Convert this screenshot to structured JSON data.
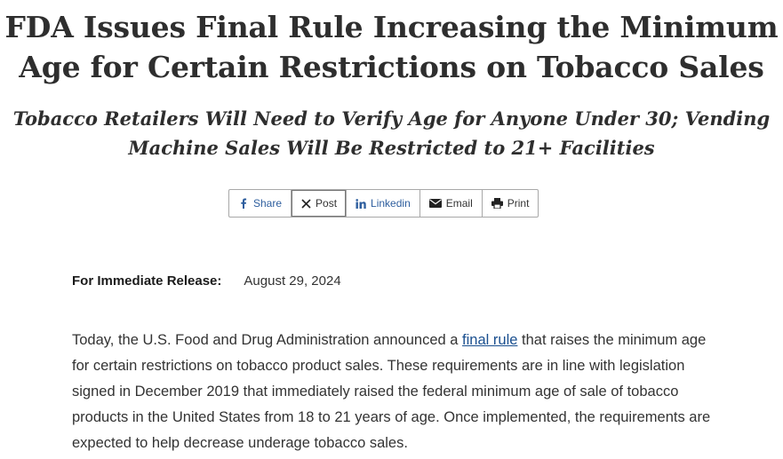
{
  "article": {
    "title": "FDA Issues Final Rule Increasing the Minimum Age for Certain Restrictions on Tobacco Sales",
    "subtitle": "Tobacco Retailers Will Need to Verify Age for Anyone Under 30; Vending Machine Sales Will Be Restricted to 21+ Facilities"
  },
  "share_bar": {
    "share": "Share",
    "post": "Post",
    "linkedin": "Linkedin",
    "email": "Email",
    "print": "Print",
    "icons": [
      "facebook-icon",
      "x-icon",
      "linkedin-icon",
      "email-icon",
      "print-icon"
    ]
  },
  "release": {
    "label": "For Immediate Release:",
    "date": "August 29, 2024"
  },
  "body": {
    "p1_before": "Today, the U.S. Food and Drug Administration announced a ",
    "p1_link": "final rule",
    "p1_after": " that raises the minimum age for certain restrictions on tobacco product sales. These requirements are in line with legislation signed in December 2019 that immediately raised the federal minimum age of sale of tobacco products in the United States from 18 to 21 years of age. Once implemented, the requirements are expected to help decrease underage tobacco sales."
  },
  "colors": {
    "link": "#1a4f8f",
    "social_blue": "#2e5e9e",
    "heading": "#2e2e2e"
  }
}
